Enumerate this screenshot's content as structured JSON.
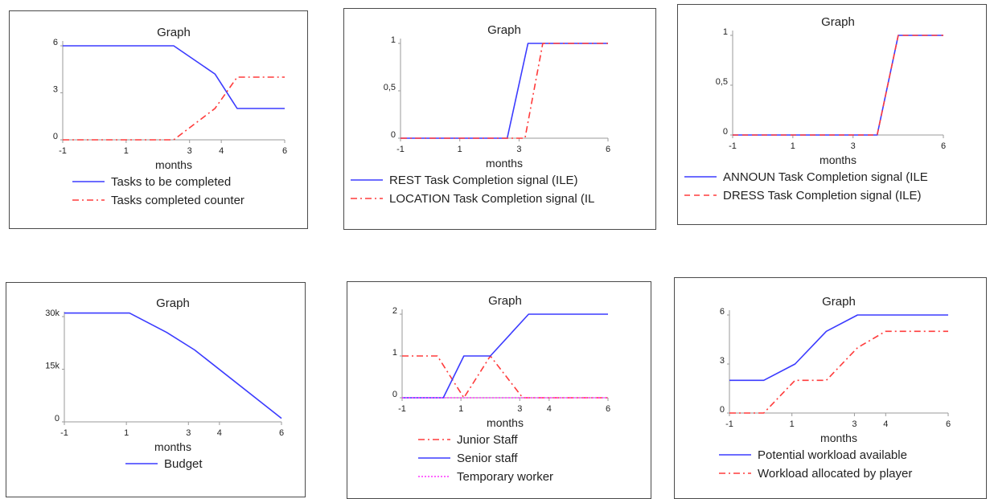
{
  "chart_data": [
    {
      "type": "line",
      "title": "Graph",
      "xlabel": "months",
      "ylabel": "",
      "xlim": [
        -1,
        6
      ],
      "ylim": [
        0,
        6
      ],
      "xticks": [
        "-1",
        "1",
        "3",
        "4",
        "6"
      ],
      "yticks": [
        "0",
        "3",
        "6"
      ],
      "grid": false,
      "legend_position": "bottom",
      "series": [
        {
          "name": "Tasks to be completed",
          "color": "#3b3bff",
          "style": "solid",
          "x": [
            -1,
            2.5,
            3.8,
            4.5,
            6
          ],
          "y": [
            6,
            6,
            4.2,
            2,
            2
          ]
        },
        {
          "name": "Tasks completed counter",
          "color": "#ff3b3b",
          "style": "dashdot",
          "x": [
            -1,
            2.5,
            3.8,
            4.5,
            6
          ],
          "y": [
            0,
            0,
            2,
            4,
            4
          ]
        }
      ]
    },
    {
      "type": "line",
      "title": "Graph",
      "xlabel": "months",
      "ylabel": "",
      "xlim": [
        -1,
        6
      ],
      "ylim": [
        0,
        1
      ],
      "xticks": [
        "-1",
        "1",
        "3",
        "6"
      ],
      "yticks": [
        "0",
        "0,5",
        "1"
      ],
      "grid": false,
      "legend_position": "bottom",
      "series": [
        {
          "name": "REST Task Completion signal (ILE)",
          "color": "#3b3bff",
          "style": "solid",
          "x": [
            -1,
            2.6,
            3.3,
            6
          ],
          "y": [
            0,
            0,
            1,
            1
          ]
        },
        {
          "name": "LOCATION Task Completion signal (IL",
          "color": "#ff3b3b",
          "style": "dashdot",
          "x": [
            -1,
            3.2,
            3.8,
            6
          ],
          "y": [
            0,
            0,
            1,
            1
          ]
        }
      ]
    },
    {
      "type": "line",
      "title": "Graph",
      "xlabel": "months",
      "ylabel": "",
      "xlim": [
        -1,
        6
      ],
      "ylim": [
        0,
        1
      ],
      "xticks": [
        "-1",
        "1",
        "3",
        "6"
      ],
      "yticks": [
        "0",
        "0,5",
        "1"
      ],
      "grid": false,
      "legend_position": "bottom",
      "series": [
        {
          "name": "ANNOUN Task Completion signal (ILE",
          "color": "#3b3bff",
          "style": "solid",
          "x": [
            -1,
            3.8,
            4.5,
            6
          ],
          "y": [
            0,
            0,
            1,
            1
          ]
        },
        {
          "name": "DRESS Task Completion signal (ILE)",
          "color": "#ff3b3b",
          "style": "dashed",
          "x": [
            -1,
            3.8,
            4.5,
            6
          ],
          "y": [
            0,
            0,
            1,
            1
          ]
        }
      ]
    },
    {
      "type": "line",
      "title": "Graph",
      "xlabel": "months",
      "ylabel": "",
      "xlim": [
        -1,
        6
      ],
      "ylim": [
        0,
        30000
      ],
      "xticks": [
        "-1",
        "1",
        "3",
        "4",
        "6"
      ],
      "yticks": [
        "0",
        "15k",
        "30k"
      ],
      "grid": false,
      "legend_position": "bottom",
      "series": [
        {
          "name": "Budget",
          "color": "#3b3bff",
          "style": "solid",
          "x": [
            -1,
            1.1,
            2.3,
            3.2,
            6
          ],
          "y": [
            31000,
            31000,
            25500,
            20500,
            1000
          ]
        }
      ]
    },
    {
      "type": "line",
      "title": "Graph",
      "xlabel": "months",
      "ylabel": "",
      "xlim": [
        -1,
        6
      ],
      "ylim": [
        0,
        2
      ],
      "xticks": [
        "-1",
        "1",
        "3",
        "4",
        "6"
      ],
      "yticks": [
        "0",
        "1",
        "2"
      ],
      "grid": false,
      "legend_position": "bottom",
      "series": [
        {
          "name": "Junior Staff",
          "color": "#ff3b3b",
          "style": "dashdot",
          "x": [
            -1,
            0.2,
            1.1,
            2.0,
            3.1,
            6
          ],
          "y": [
            1,
            1,
            0,
            1,
            0,
            0
          ]
        },
        {
          "name": "Senior staff",
          "color": "#3b3bff",
          "style": "solid",
          "x": [
            -1,
            0.4,
            1.1,
            2.0,
            3.3,
            6
          ],
          "y": [
            0,
            0,
            1,
            1,
            2,
            2
          ]
        },
        {
          "name": "Temporary worker",
          "color": "#ff33ff",
          "style": "dotted",
          "x": [
            -1,
            6
          ],
          "y": [
            0,
            0
          ]
        }
      ]
    },
    {
      "type": "line",
      "title": "Graph",
      "xlabel": "months",
      "ylabel": "",
      "xlim": [
        -1,
        6
      ],
      "ylim": [
        0,
        6
      ],
      "xticks": [
        "-1",
        "1",
        "3",
        "4",
        "6"
      ],
      "yticks": [
        "0",
        "3",
        "6"
      ],
      "grid": false,
      "legend_position": "bottom",
      "series": [
        {
          "name": "Potential workload available",
          "color": "#3b3bff",
          "style": "solid",
          "x": [
            -1,
            0.1,
            1.1,
            2.1,
            3.1,
            6
          ],
          "y": [
            2,
            2,
            3,
            5,
            6,
            6
          ]
        },
        {
          "name": "Workload allocated by player",
          "color": "#ff3b3b",
          "style": "dashdot",
          "x": [
            -1,
            0.1,
            1.1,
            2.1,
            3.1,
            4,
            6
          ],
          "y": [
            0,
            0,
            2,
            2,
            4,
            5,
            5
          ]
        }
      ]
    }
  ]
}
